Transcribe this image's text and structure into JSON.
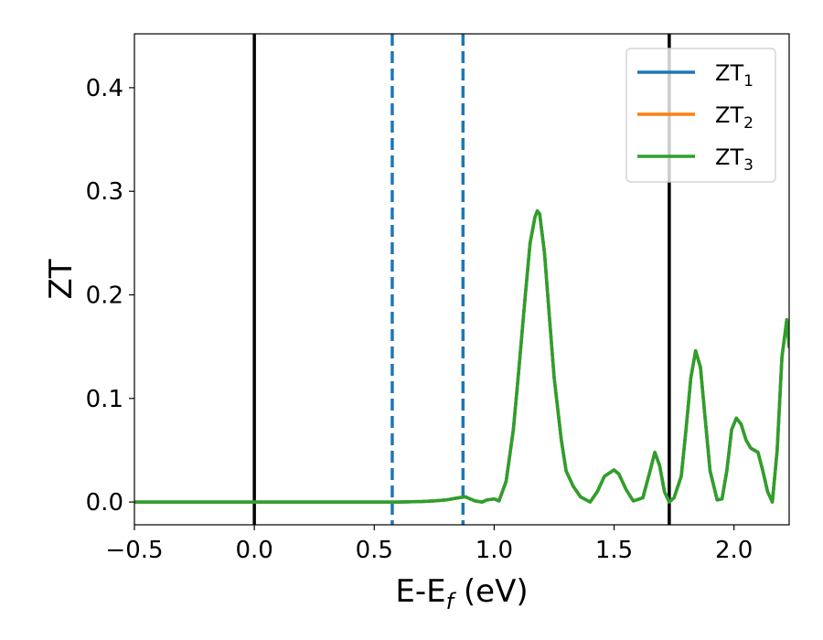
{
  "chart_data": {
    "type": "line",
    "title": "",
    "xlabel": {
      "main": "E-E",
      "sub": "f",
      "unit": " (eV)"
    },
    "ylabel": "ZT",
    "xlim": [
      -0.5,
      2.23
    ],
    "ylim": [
      -0.022,
      0.452
    ],
    "x_ticks": [
      -0.5,
      0.0,
      0.5,
      1.0,
      1.5,
      2.0
    ],
    "x_tick_labels": [
      "−0.5",
      "0.0",
      "0.5",
      "1.0",
      "1.5",
      "2.0"
    ],
    "y_ticks": [
      0.0,
      0.1,
      0.2,
      0.3,
      0.4
    ],
    "y_tick_labels": [
      "0.0",
      "0.1",
      "0.2",
      "0.3",
      "0.4"
    ],
    "grid": false,
    "legend_position": "top-right",
    "vertical_lines": [
      {
        "x": 0.0,
        "style": "solid",
        "color": "#000000"
      },
      {
        "x": 1.73,
        "style": "solid",
        "color": "#000000"
      },
      {
        "x": 0.575,
        "style": "dashed",
        "color": "#1f77b4"
      },
      {
        "x": 0.87,
        "style": "dashed",
        "color": "#1f77b4"
      }
    ],
    "series": [
      {
        "name": "ZT",
        "sub": "1",
        "color": "#1f77b4",
        "shared_curve": true
      },
      {
        "name": "ZT",
        "sub": "2",
        "color": "#ff7f0e",
        "shared_curve": true
      },
      {
        "name": "ZT",
        "sub": "3",
        "color": "#2ca02c",
        "shared_curve": true
      }
    ],
    "curve": {
      "x": [
        -0.5,
        0.0,
        0.5,
        0.6,
        0.7,
        0.75,
        0.8,
        0.85,
        0.88,
        0.9,
        0.92,
        0.95,
        0.97,
        1.0,
        1.02,
        1.05,
        1.08,
        1.1,
        1.13,
        1.15,
        1.17,
        1.18,
        1.19,
        1.21,
        1.23,
        1.25,
        1.28,
        1.3,
        1.33,
        1.36,
        1.4,
        1.43,
        1.46,
        1.5,
        1.52,
        1.55,
        1.58,
        1.62,
        1.65,
        1.67,
        1.69,
        1.71,
        1.73,
        1.75,
        1.78,
        1.8,
        1.82,
        1.84,
        1.86,
        1.88,
        1.9,
        1.93,
        1.95,
        1.97,
        1.99,
        2.01,
        2.03,
        2.05,
        2.07,
        2.1,
        2.12,
        2.14,
        2.16,
        2.18,
        2.2,
        2.22,
        2.23
      ],
      "y": [
        0.0,
        0.0,
        0.0,
        0.0,
        0.0005,
        0.001,
        0.002,
        0.004,
        0.005,
        0.003,
        0.001,
        0.0,
        0.002,
        0.003,
        0.001,
        0.02,
        0.07,
        0.12,
        0.2,
        0.25,
        0.275,
        0.281,
        0.278,
        0.24,
        0.18,
        0.12,
        0.06,
        0.03,
        0.015,
        0.005,
        0.0,
        0.01,
        0.025,
        0.031,
        0.027,
        0.012,
        0.001,
        0.004,
        0.03,
        0.048,
        0.035,
        0.01,
        0.0,
        0.004,
        0.025,
        0.07,
        0.12,
        0.146,
        0.13,
        0.08,
        0.03,
        0.002,
        0.003,
        0.03,
        0.07,
        0.081,
        0.075,
        0.06,
        0.052,
        0.048,
        0.03,
        0.01,
        0.0,
        0.05,
        0.14,
        0.176,
        0.15
      ]
    }
  }
}
